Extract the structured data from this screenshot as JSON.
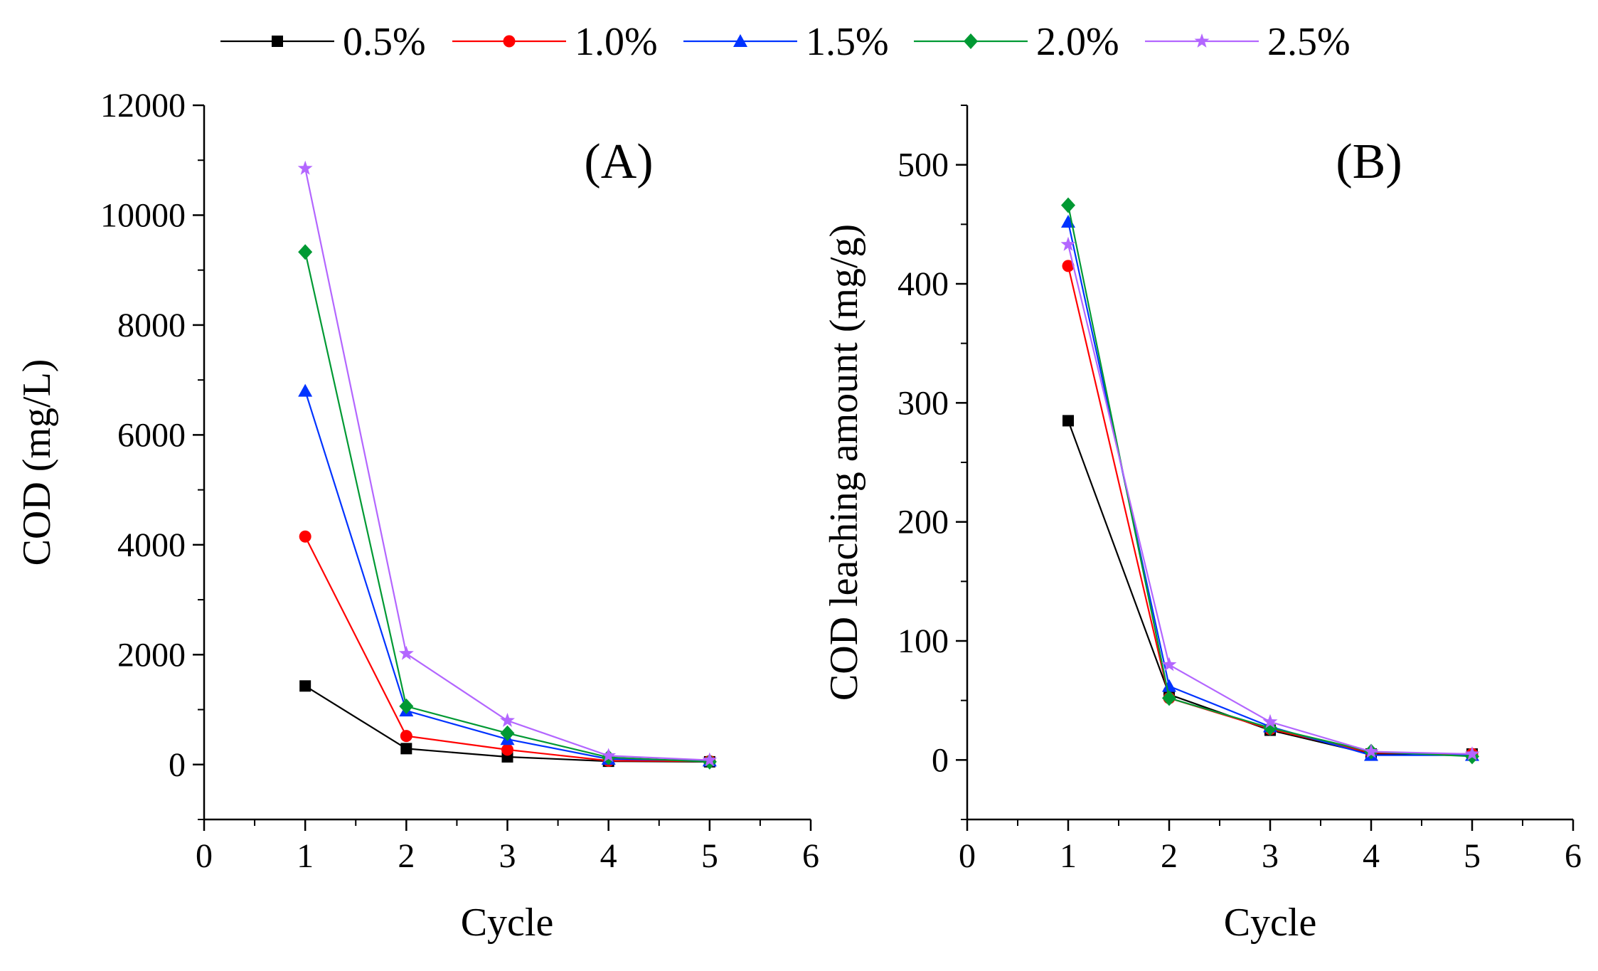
{
  "chart_data": [
    {
      "type": "line",
      "panel_label": "(A)",
      "xlabel": "Cycle",
      "ylabel": "COD (mg/L)",
      "xlim": [
        0,
        6
      ],
      "ylim": [
        -1000,
        12000
      ],
      "xticks": [
        0,
        1,
        2,
        3,
        4,
        5,
        6
      ],
      "xtick_labels": [
        "0",
        "1",
        "2",
        "3",
        "4",
        "5",
        "6"
      ],
      "yticks": [
        0,
        2000,
        4000,
        6000,
        8000,
        10000,
        12000
      ],
      "ytick_labels": [
        "0",
        "2000",
        "4000",
        "6000",
        "8000",
        "10000",
        "12000"
      ],
      "grid": false,
      "x": [
        1,
        2,
        3,
        4,
        5
      ],
      "series": [
        {
          "name": "0.5%",
          "color": "#000000",
          "marker": "square",
          "values": [
            1430,
            290,
            140,
            60,
            50
          ]
        },
        {
          "name": "1.0%",
          "color": "#ff0000",
          "marker": "circle",
          "values": [
            4150,
            520,
            270,
            70,
            60
          ]
        },
        {
          "name": "1.5%",
          "color": "#0033ff",
          "marker": "triangle",
          "values": [
            6800,
            980,
            460,
            100,
            70
          ]
        },
        {
          "name": "2.0%",
          "color": "#009933",
          "marker": "diamond",
          "values": [
            9330,
            1060,
            570,
            130,
            50
          ]
        },
        {
          "name": "2.5%",
          "color": "#b366ff",
          "marker": "star",
          "values": [
            10850,
            2020,
            800,
            160,
            80
          ]
        }
      ]
    },
    {
      "type": "line",
      "panel_label": "(B)",
      "xlabel": "Cycle",
      "ylabel": "COD leaching amount (mg/g)",
      "xlim": [
        0,
        6
      ],
      "ylim": [
        -50,
        550
      ],
      "xticks": [
        0,
        1,
        2,
        3,
        4,
        5,
        6
      ],
      "xtick_labels": [
        "0",
        "1",
        "2",
        "3",
        "4",
        "5",
        "6"
      ],
      "yticks": [
        0,
        100,
        200,
        300,
        400,
        500
      ],
      "ytick_labels": [
        "0",
        "100",
        "200",
        "300",
        "400",
        "500"
      ],
      "grid": false,
      "x": [
        1,
        2,
        3,
        4,
        5
      ],
      "series": [
        {
          "name": "0.5%",
          "color": "#000000",
          "marker": "square",
          "values": [
            285,
            55,
            25,
            5,
            5
          ]
        },
        {
          "name": "1.0%",
          "color": "#ff0000",
          "marker": "circle",
          "values": [
            415,
            52,
            26,
            6,
            5
          ]
        },
        {
          "name": "1.5%",
          "color": "#0033ff",
          "marker": "triangle",
          "values": [
            452,
            62,
            28,
            4,
            4
          ]
        },
        {
          "name": "2.0%",
          "color": "#009933",
          "marker": "diamond",
          "values": [
            466,
            52,
            27,
            7,
            3
          ]
        },
        {
          "name": "2.5%",
          "color": "#b366ff",
          "marker": "star",
          "values": [
            433,
            80,
            32,
            7,
            5
          ]
        }
      ]
    }
  ],
  "legend": {
    "placement": "top-center",
    "entries": [
      "0.5%",
      "1.0%",
      "1.5%",
      "2.0%",
      "2.5%"
    ]
  }
}
